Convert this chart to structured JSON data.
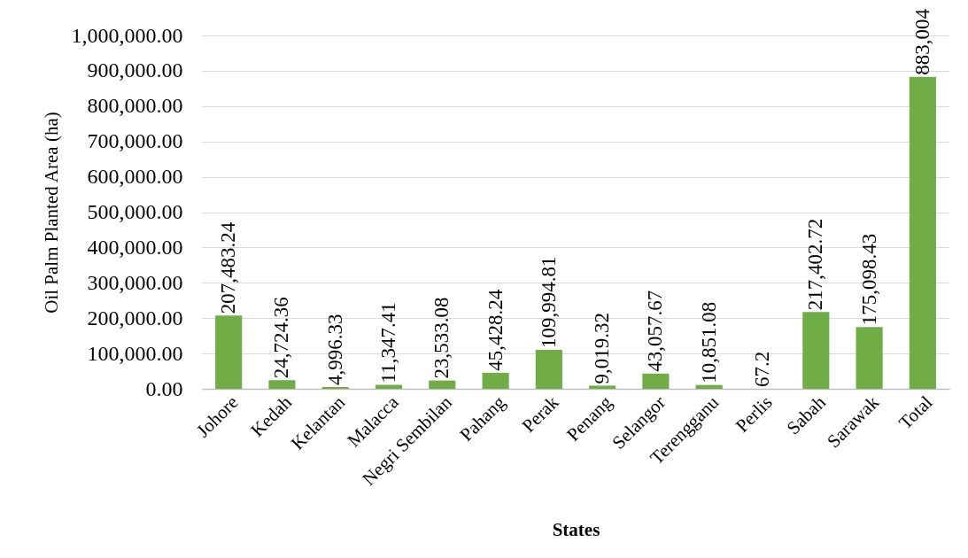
{
  "chart_data": {
    "type": "bar",
    "xlabel": "States",
    "ylabel": "Oil Palm Planted Area (ha)",
    "categories": [
      "Johore",
      "Kedah",
      "Kelantan",
      "Malacca",
      "Negri Sembilan",
      "Pahang",
      "Perak",
      "Penang",
      "Selangor",
      "Terengganu",
      "Perlis",
      "Sabah",
      "Sarawak",
      "Total"
    ],
    "values": [
      207483.24,
      24724.36,
      4996.33,
      11347.41,
      23533.08,
      45428.24,
      109994.81,
      9019.32,
      43057.67,
      10851.08,
      67.2,
      217402.72,
      175098.43,
      883004
    ],
    "value_labels": [
      "207,483.24",
      "24,724.36",
      "4,996.33",
      "11,347.41",
      "23,533.08",
      "45,428.24",
      "109,994.81",
      "9,019.32",
      "43,057.67",
      "10,851.08",
      "67.2",
      "217,402.72",
      "175,098.43",
      "883,004"
    ],
    "color": "#70ad47",
    "ylim": [
      0,
      1000000
    ],
    "yticks": [
      {
        "value": 0,
        "label": "0.00"
      },
      {
        "value": 100000,
        "label": "100,000.00"
      },
      {
        "value": 200000,
        "label": "200,000.00"
      },
      {
        "value": 300000,
        "label": "300,000.00"
      },
      {
        "value": 400000,
        "label": "400,000.00"
      },
      {
        "value": 500000,
        "label": "500,000.00"
      },
      {
        "value": 600000,
        "label": "600,000.00"
      },
      {
        "value": 700000,
        "label": "700,000.00"
      },
      {
        "value": 800000,
        "label": "800,000.00"
      },
      {
        "value": 900000,
        "label": "900,000.00"
      },
      {
        "value": 1000000,
        "label": "1,000,000.00"
      }
    ],
    "grid": "y"
  }
}
